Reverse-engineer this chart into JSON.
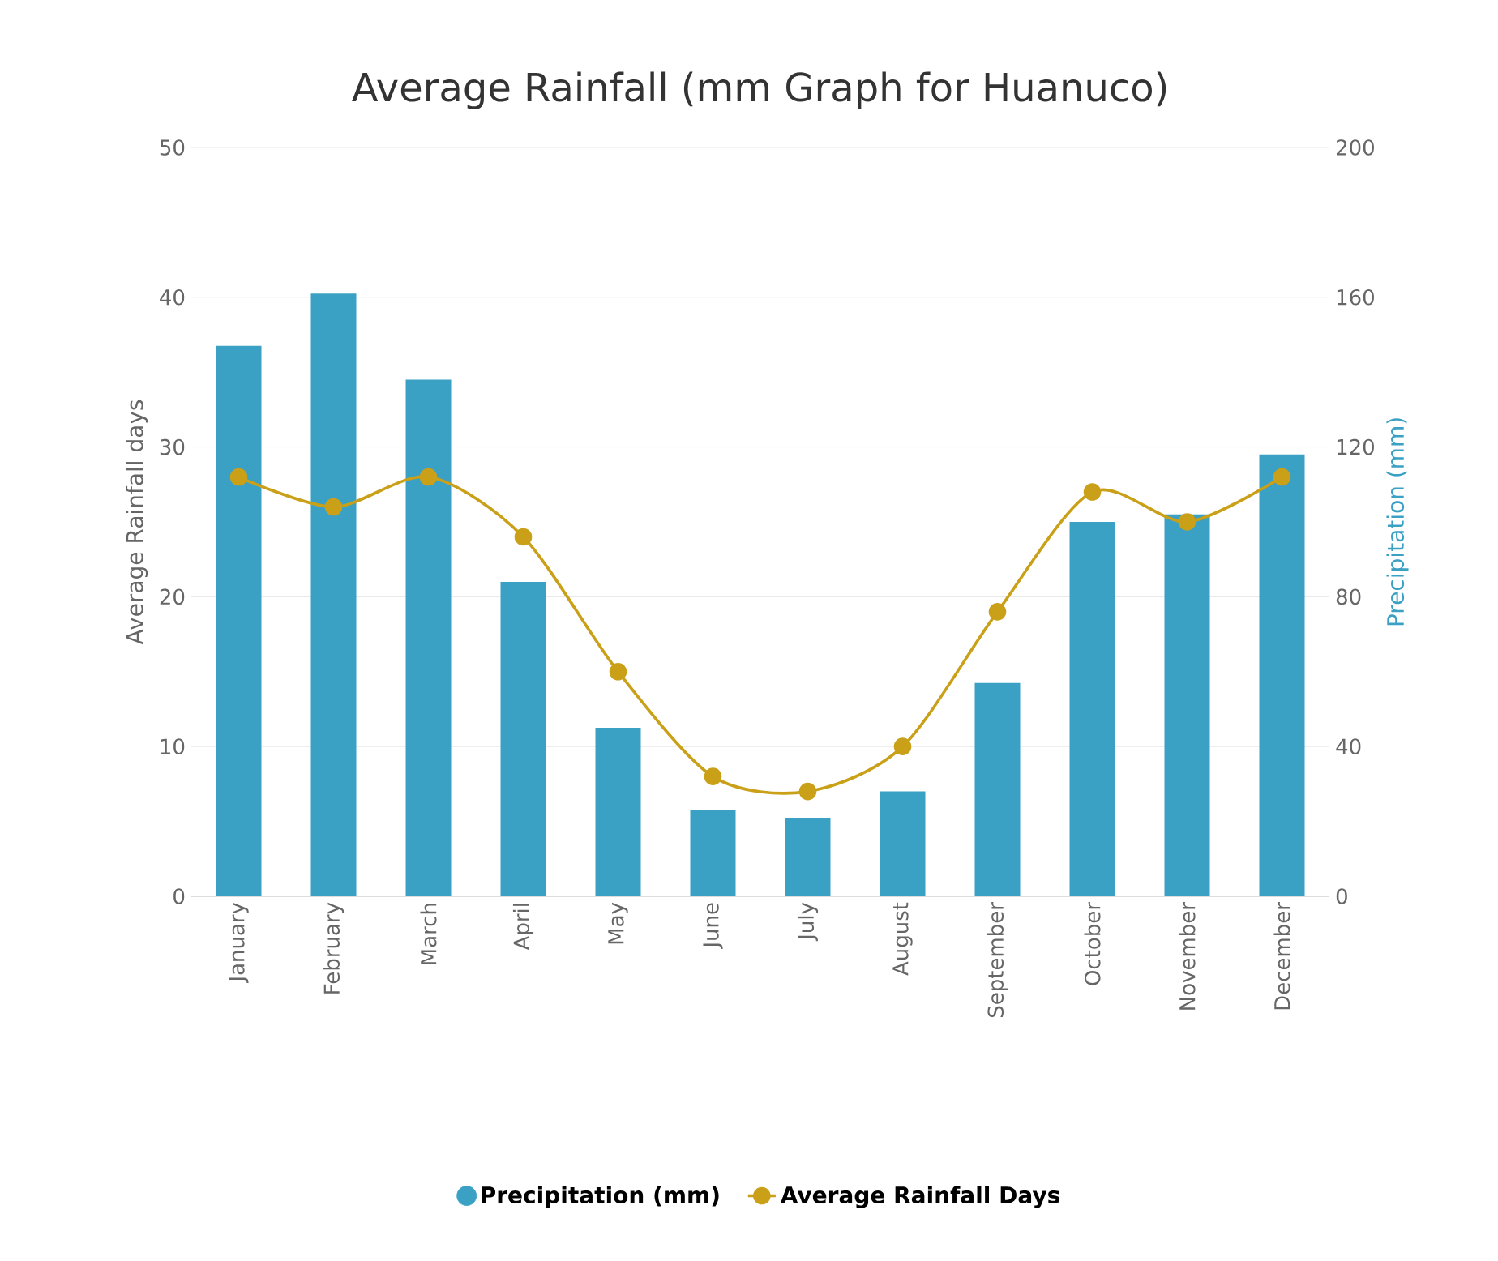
{
  "chart_data": {
    "type": "bar",
    "title": "Average Rainfall (mm Graph for Huanuco)",
    "categories": [
      "January",
      "February",
      "March",
      "April",
      "May",
      "June",
      "July",
      "August",
      "September",
      "October",
      "November",
      "December"
    ],
    "series": [
      {
        "name": "Precipitation (mm)",
        "axis": "y2",
        "color": "#3aa0c4",
        "values": [
          147,
          161,
          138,
          84,
          45,
          23,
          21,
          28,
          57,
          100,
          102,
          118
        ]
      },
      {
        "name": "Average Rainfall Days",
        "type": "line",
        "axis": "y",
        "color": "#c9a018",
        "values": [
          28,
          26,
          28,
          24,
          15,
          8,
          7,
          10,
          19,
          27,
          25,
          28
        ]
      }
    ],
    "ylabel": "Average Rainfall days",
    "y2label": "Precipitation (mm)",
    "ylim": [
      0,
      50
    ],
    "yticks": [
      0,
      10,
      20,
      30,
      40,
      50
    ],
    "y2lim": [
      0,
      200
    ],
    "y2ticks": [
      0,
      40,
      80,
      120,
      160,
      200
    ],
    "grid": "y",
    "legend": "bottom",
    "marker": "circle",
    "line_style": "solid"
  }
}
